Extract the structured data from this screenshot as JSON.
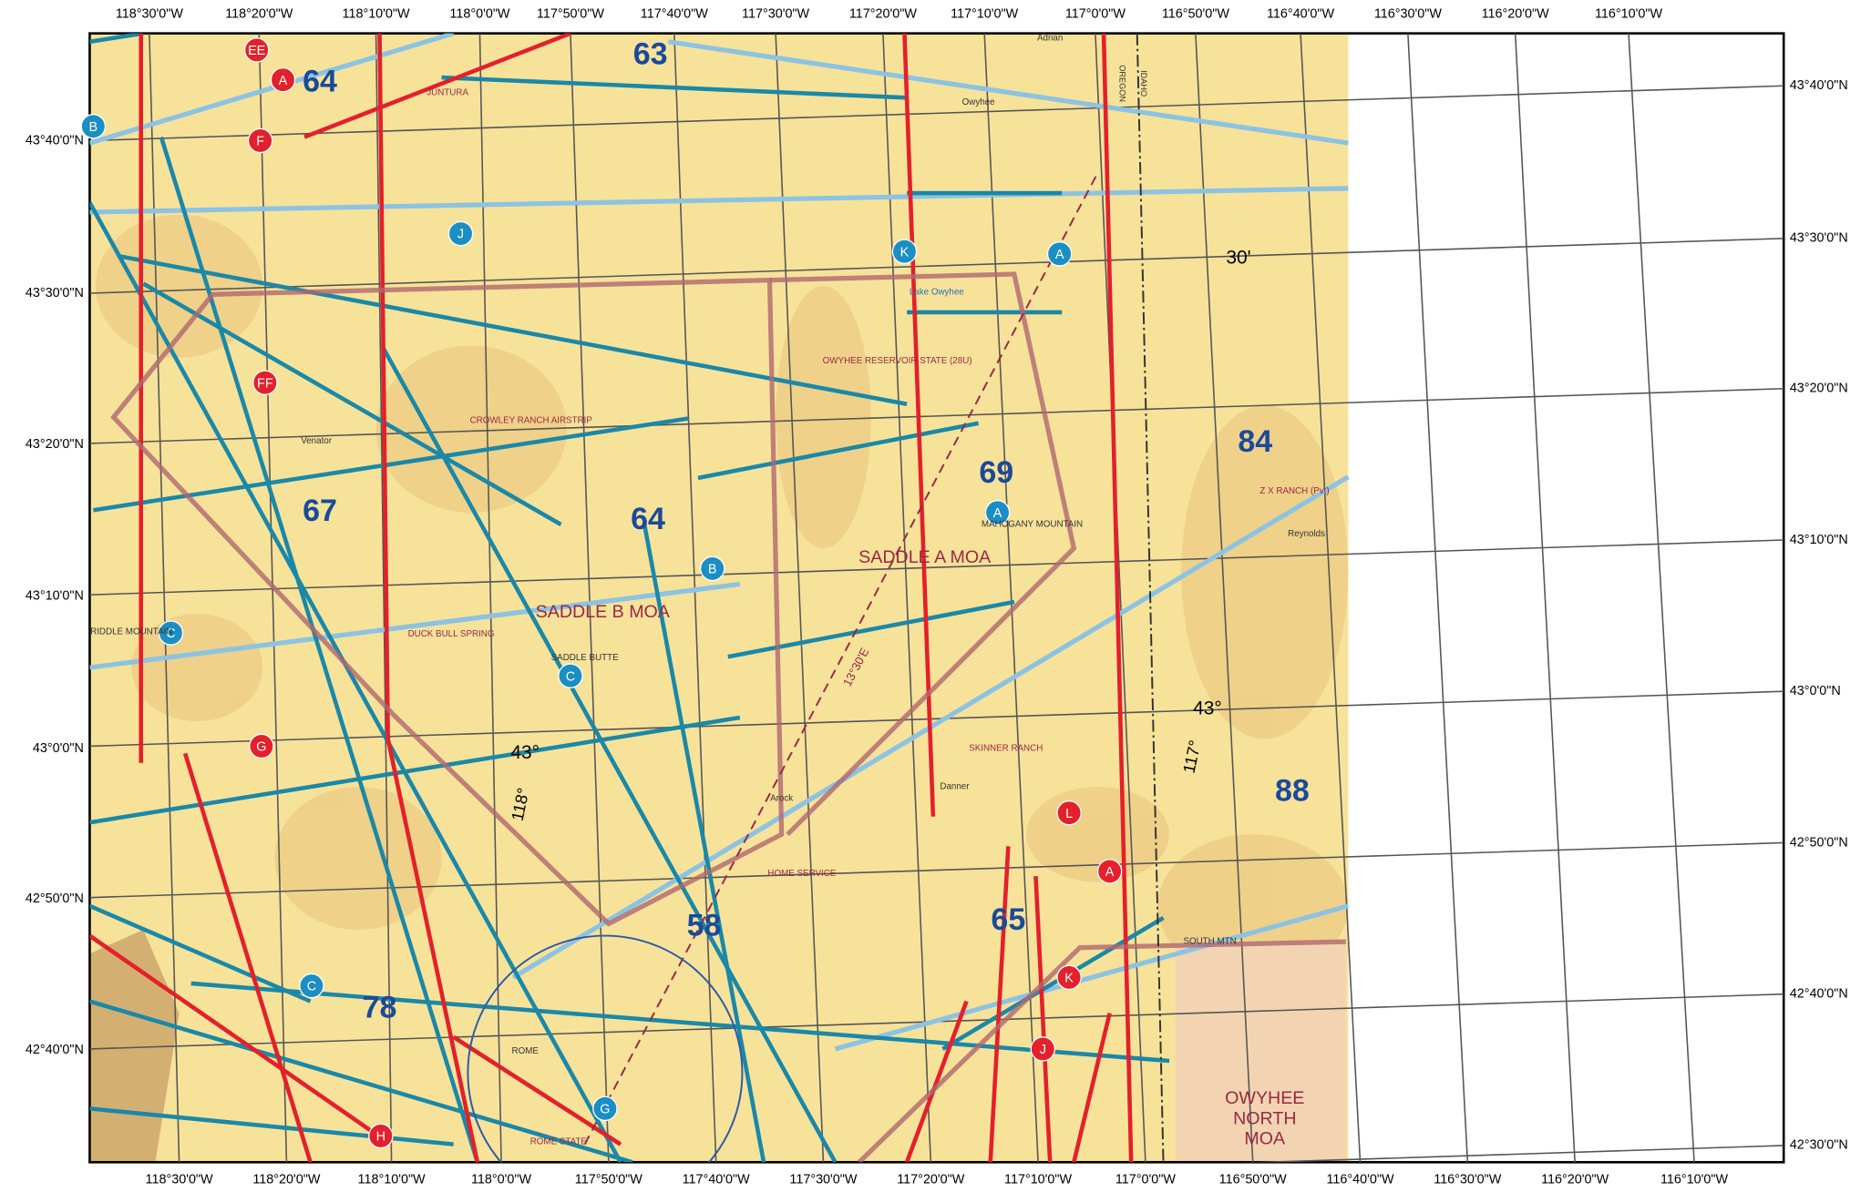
{
  "lon_labels_top": [
    "118°30'0\"W",
    "118°20'0\"W",
    "118°10'0\"W",
    "118°0'0\"W",
    "117°50'0\"W",
    "117°40'0\"W",
    "117°30'0\"W",
    "117°20'0\"W",
    "117°10'0\"W",
    "117°0'0\"W",
    "116°50'0\"W",
    "116°40'0\"W",
    "116°30'0\"W",
    "116°20'0\"W",
    "116°10'0\"W"
  ],
  "lon_labels_bottom": [
    "118°30'0\"W",
    "118°20'0\"W",
    "118°10'0\"W",
    "118°0'0\"W",
    "117°50'0\"W",
    "117°40'0\"W",
    "117°30'0\"W",
    "117°20'0\"W",
    "117°10'0\"W",
    "117°0'0\"W",
    "116°50'0\"W",
    "116°40'0\"W",
    "116°30'0\"W",
    "116°20'0\"W",
    "116°10'0\"W"
  ],
  "lat_labels_left": [
    "43°40'0\"N",
    "43°30'0\"N",
    "43°20'0\"N",
    "43°10'0\"N",
    "43°0'0\"N",
    "42°50'0\"N",
    "42°40'0\"N"
  ],
  "lat_labels_right": [
    "43°40'0\"N",
    "43°30'0\"N",
    "43°20'0\"N",
    "43°10'0\"N",
    "43°0'0\"N",
    "42°50'0\"N",
    "42°40'0\"N",
    "42°30'0\"N"
  ],
  "areas": [
    "SADDLE B MOA",
    "SADDLE A MOA"
  ],
  "owyhee_moa": [
    "OWYHEE",
    "NORTH",
    "MOA"
  ],
  "markers": [
    {
      "label": "EE",
      "color": "#e3202b"
    },
    {
      "label": "A",
      "color": "#e3202b"
    },
    {
      "label": "F",
      "color": "#e3202b"
    },
    {
      "label": "B",
      "color": "#1b8ec4"
    },
    {
      "label": "J",
      "color": "#1b8ec4"
    },
    {
      "label": "K",
      "color": "#1b8ec4"
    },
    {
      "label": "A",
      "color": "#1b8ec4"
    },
    {
      "label": "FF",
      "color": "#e3202b"
    },
    {
      "label": "A",
      "color": "#1b8ec4"
    },
    {
      "label": "B",
      "color": "#1b8ec4"
    },
    {
      "label": "C",
      "color": "#1b8ec4"
    },
    {
      "label": "C",
      "color": "#1b8ec4"
    },
    {
      "label": "G",
      "color": "#e3202b"
    },
    {
      "label": "L",
      "color": "#e3202b"
    },
    {
      "label": "A",
      "color": "#e3202b"
    },
    {
      "label": "C",
      "color": "#1b8ec4"
    },
    {
      "label": "K",
      "color": "#e3202b"
    },
    {
      "label": "J",
      "color": "#e3202b"
    },
    {
      "label": "G",
      "color": "#1b8ec4"
    },
    {
      "label": "H",
      "color": "#e3202b"
    }
  ],
  "grid_numbers": [
    "63",
    "64",
    "64",
    "67",
    "78",
    "58",
    "65",
    "69",
    "84",
    "88"
  ],
  "airports": [
    "JUNTURA",
    "CROWLEY RANCH AIRSTRIP",
    "OWYHEE RESERVOIR STATE (28U)",
    "DUCK BULL SPRING",
    "HOME SERVICE",
    "SKINNER RANCH",
    "Z X RANCH (Pvt)",
    "ROME STATE"
  ],
  "places": [
    "Adrian",
    "Lake Owyhee",
    "MAHOGANY MOUNTAIN",
    "SADDLE BUTTE",
    "RIDDLE MOUNTAIN",
    "Arock",
    "Danner",
    "Reynolds",
    "SOUTH MTN",
    "ROME",
    "Venator",
    "Owyhee"
  ],
  "graticule_labels": [
    "30'",
    "43°",
    "43°",
    "118°",
    "117°",
    "13°30'E"
  ],
  "states": [
    "OREGON",
    "IDAHO"
  ]
}
